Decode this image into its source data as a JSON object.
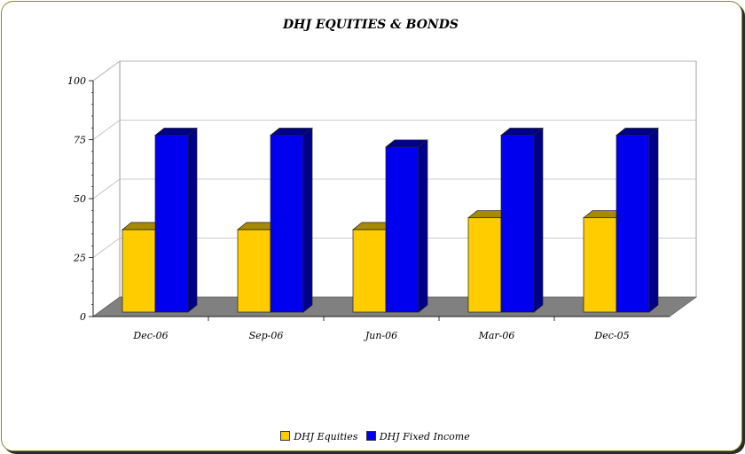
{
  "chart_data": {
    "type": "bar",
    "title": "DHJ EQUITIES & BONDS",
    "categories": [
      "Dec-06",
      "Sep-06",
      "Jun-06",
      "Mar-06",
      "Dec-05"
    ],
    "series": [
      {
        "name": "DHJ Equities",
        "values": [
          35,
          35,
          35,
          40,
          40
        ],
        "color": "#ffcc00",
        "side_color": "#a88a00"
      },
      {
        "name": "DHJ Fixed Income",
        "values": [
          75,
          75,
          70,
          75,
          75
        ],
        "color": "#0000ee",
        "side_color": "#000088"
      }
    ],
    "ylim": [
      0,
      100
    ],
    "yticks": [
      0,
      25,
      50,
      75,
      100
    ],
    "grid": true,
    "legend_position": "bottom",
    "floor_color": "#808080"
  }
}
